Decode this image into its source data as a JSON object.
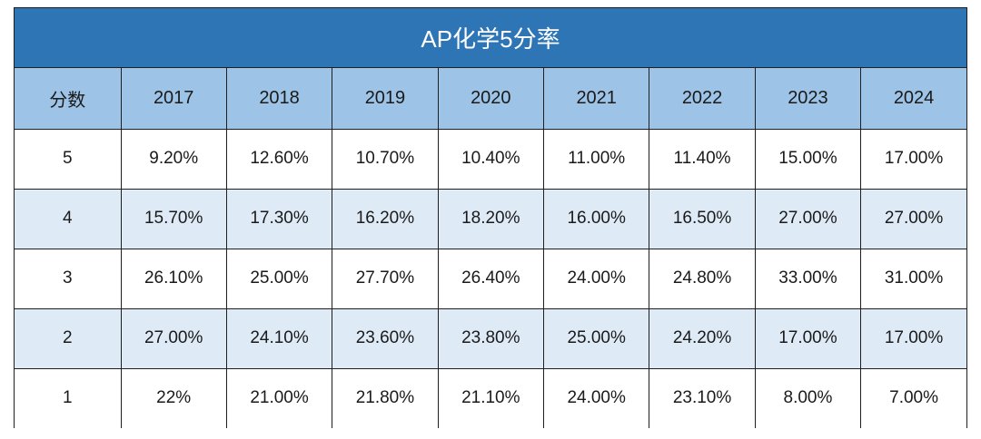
{
  "chart_data": {
    "type": "table",
    "title": "AP化学5分率",
    "header_label": "分数",
    "columns": [
      "2017",
      "2018",
      "2019",
      "2020",
      "2021",
      "2022",
      "2023",
      "2024"
    ],
    "rows": [
      {
        "score": "5",
        "values": [
          "9.20%",
          "12.60%",
          "10.70%",
          "10.40%",
          "11.00%",
          "11.40%",
          "15.00%",
          "17.00%"
        ]
      },
      {
        "score": "4",
        "values": [
          "15.70%",
          "17.30%",
          "16.20%",
          "18.20%",
          "16.00%",
          "16.50%",
          "27.00%",
          "27.00%"
        ]
      },
      {
        "score": "3",
        "values": [
          "26.10%",
          "25.00%",
          "27.70%",
          "26.40%",
          "24.00%",
          "24.80%",
          "33.00%",
          "31.00%"
        ]
      },
      {
        "score": "2",
        "values": [
          "27.00%",
          "24.10%",
          "23.60%",
          "23.80%",
          "25.00%",
          "24.20%",
          "17.00%",
          "17.00%"
        ]
      },
      {
        "score": "1",
        "values": [
          "22%",
          "21.00%",
          "21.80%",
          "21.10%",
          "24.00%",
          "23.10%",
          "8.00%",
          "7.00%"
        ]
      }
    ]
  },
  "colors": {
    "title_bg": "#2e75b6",
    "header_bg": "#9dc3e6",
    "stripe_bg": "#deebf7"
  }
}
